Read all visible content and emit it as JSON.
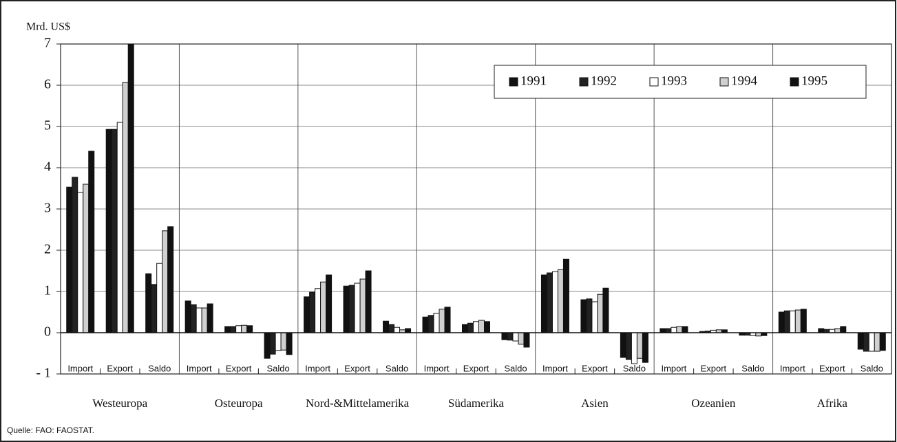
{
  "chart_data": {
    "type": "bar",
    "y_axis_label": "Mrd. US$",
    "source": "Quelle: FAO: FAOSTAT.",
    "groups": [
      "Westeuropa",
      "Osteuropa",
      "Nord-&Mittelamerika",
      "Südamerika",
      "Asien",
      "Ozeanien",
      "Afrika"
    ],
    "categories": [
      "Import",
      "Export",
      "Saldo",
      "Import",
      "Export",
      "Saldo",
      "Import",
      "Export",
      "Saldo",
      "Import",
      "Export",
      "Saldo",
      "Import",
      "Export",
      "Saldo",
      "Import",
      "Export",
      "Saldo",
      "Import",
      "Export",
      "Saldo"
    ],
    "series": [
      {
        "name": "1991",
        "color": "#111111",
        "values": [
          3.53,
          4.93,
          1.43,
          0.77,
          0.15,
          -0.62,
          0.87,
          1.13,
          0.28,
          0.38,
          0.2,
          -0.17,
          1.4,
          0.8,
          -0.6,
          0.1,
          0.03,
          -0.06,
          0.5,
          0.1,
          -0.4
        ]
      },
      {
        "name": "1992",
        "color": "#222222",
        "values": [
          3.77,
          4.93,
          1.17,
          0.68,
          0.15,
          -0.52,
          0.98,
          1.15,
          0.2,
          0.42,
          0.23,
          -0.18,
          1.45,
          0.82,
          -0.65,
          0.1,
          0.04,
          -0.06,
          0.53,
          0.08,
          -0.45
        ]
      },
      {
        "name": "1993",
        "color": "#ffffff",
        "values": [
          3.4,
          5.1,
          1.68,
          0.6,
          0.17,
          -0.43,
          1.07,
          1.2,
          0.13,
          0.47,
          0.27,
          -0.2,
          1.48,
          0.75,
          -0.75,
          0.13,
          0.06,
          -0.07,
          0.53,
          0.08,
          -0.45
        ]
      },
      {
        "name": "1994",
        "color": "#d0d0d0",
        "values": [
          3.6,
          6.07,
          2.47,
          0.6,
          0.18,
          -0.42,
          1.23,
          1.3,
          0.07,
          0.57,
          0.3,
          -0.28,
          1.53,
          0.93,
          -0.62,
          0.15,
          0.07,
          -0.08,
          0.55,
          0.1,
          -0.45
        ]
      },
      {
        "name": "1995",
        "color": "#111111",
        "values": [
          4.4,
          7,
          2.57,
          0.7,
          0.17,
          -0.53,
          1.4,
          1.5,
          0.1,
          0.62,
          0.27,
          -0.35,
          1.78,
          1.08,
          -0.72,
          0.15,
          0.07,
          -0.07,
          0.57,
          0.15,
          -0.43
        ]
      }
    ],
    "ylim": [
      -1,
      7
    ],
    "yticks": [
      {
        "value": -1,
        "label": "- 1"
      },
      0,
      1,
      2,
      3,
      4,
      5,
      6,
      7
    ],
    "grid": true,
    "legend": "top-right"
  }
}
